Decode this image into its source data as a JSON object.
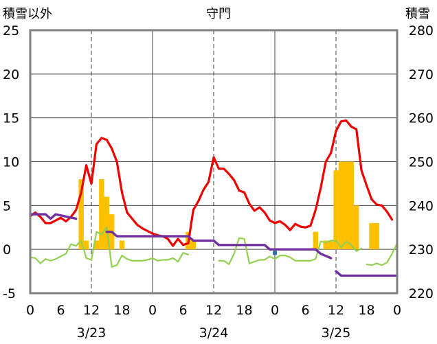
{
  "chart_data": {
    "type": "line",
    "title": "守門",
    "left_axis_label": "積雪以外",
    "right_axis_label": "積雪",
    "y_left": {
      "min": -5,
      "max": 25,
      "ticks": [
        25,
        20,
        15,
        10,
        5,
        0,
        -5
      ]
    },
    "y_right": {
      "min": 220,
      "max": 280,
      "ticks": [
        280,
        270,
        260,
        250,
        240,
        230,
        220
      ]
    },
    "x": {
      "min": 0,
      "max": 72,
      "tick_hours": [
        0,
        6,
        12,
        18,
        24,
        30,
        36,
        42,
        48,
        54,
        60,
        66,
        72
      ],
      "tick_labels": [
        "0",
        "6",
        "12",
        "18",
        "0",
        "6",
        "12",
        "18",
        "0",
        "6",
        "12",
        "18",
        "0"
      ]
    },
    "date_labels": [
      {
        "hour": 12,
        "text": "3/23"
      },
      {
        "hour": 36,
        "text": "3/24"
      },
      {
        "hour": 60,
        "text": "3/25"
      }
    ],
    "grid": {
      "dashed_hours": [
        12,
        36,
        60
      ],
      "solid_hours": [
        24,
        48
      ],
      "horizontal_lines": [
        20,
        15,
        10,
        5,
        0
      ]
    },
    "colors": {
      "temperature": "#ee0000",
      "precipitation": "#ffc000",
      "wind": "#92d050",
      "snow_depth": "#7030a0",
      "snow_marker": "#2e75b6",
      "grid": "#404040",
      "frame": "#808080"
    },
    "series": [
      {
        "key": "precipitation",
        "kind": "bar",
        "axis": "left",
        "points": [
          [
            10,
            8
          ],
          [
            11,
            1
          ],
          [
            13,
            1
          ],
          [
            14,
            8
          ],
          [
            15,
            6
          ],
          [
            16,
            4
          ],
          [
            18,
            1
          ],
          [
            31,
            2
          ],
          [
            32,
            1
          ],
          [
            56,
            2
          ],
          [
            58,
            1
          ],
          [
            59,
            1
          ],
          [
            60,
            9
          ],
          [
            61,
            10
          ],
          [
            62,
            10
          ],
          [
            63,
            10
          ],
          [
            64,
            5
          ],
          [
            67,
            3
          ],
          [
            68,
            3
          ]
        ]
      },
      {
        "key": "wind",
        "kind": "line",
        "axis": "left",
        "segments": [
          [
            [
              0,
              -0.9
            ],
            [
              1,
              -1
            ],
            [
              2,
              -1.6
            ],
            [
              3,
              -1.1
            ],
            [
              4,
              -1.3
            ],
            [
              5,
              -1.1
            ],
            [
              6,
              -0.8
            ],
            [
              7,
              -0.5
            ],
            [
              8,
              0.6
            ],
            [
              9,
              0.4
            ],
            [
              10,
              1
            ],
            [
              11,
              -1
            ],
            [
              12,
              -1.2
            ],
            [
              13,
              2
            ],
            [
              14,
              1.7
            ],
            [
              15,
              2.5
            ],
            [
              16,
              -2
            ],
            [
              17,
              -1.8
            ],
            [
              18,
              -0.7
            ],
            [
              19,
              -1.1
            ],
            [
              20,
              -1.3
            ],
            [
              21,
              -1.3
            ],
            [
              22,
              -1.3
            ],
            [
              23,
              -1.2
            ],
            [
              24,
              -1
            ],
            [
              25,
              -1.3
            ],
            [
              26,
              -1.2
            ],
            [
              27,
              -1.2
            ],
            [
              28,
              -1
            ],
            [
              29,
              -1.4
            ],
            [
              30,
              -0.4
            ],
            [
              31,
              -0.6
            ]
          ],
          [
            [
              37,
              -1.3
            ],
            [
              38,
              -1.3
            ],
            [
              39,
              -1.7
            ],
            [
              40,
              -0.5
            ],
            [
              41,
              1.3
            ],
            [
              42,
              1.2
            ],
            [
              43,
              -1.6
            ],
            [
              44,
              -1.4
            ],
            [
              45,
              -1.2
            ],
            [
              46,
              -1.2
            ],
            [
              47,
              -0.8
            ],
            [
              48,
              -1.1
            ],
            [
              49,
              -0.7
            ],
            [
              50,
              -0.7
            ],
            [
              51,
              -0.9
            ],
            [
              52,
              -1.3
            ],
            [
              53,
              -1.3
            ],
            [
              54,
              -1.3
            ],
            [
              55,
              -1.3
            ],
            [
              56,
              -1.1
            ],
            [
              57,
              0.9
            ],
            [
              58,
              0.8
            ],
            [
              59,
              1
            ],
            [
              60,
              1
            ],
            [
              61,
              0.2
            ],
            [
              62,
              0.9
            ],
            [
              63,
              0.5
            ],
            [
              64,
              -0.2
            ],
            [
              65,
              0.1
            ]
          ],
          [
            [
              66,
              -1.7
            ],
            [
              67,
              -1.8
            ],
            [
              68,
              -1.6
            ],
            [
              69,
              -1.8
            ],
            [
              70,
              -1.5
            ],
            [
              71,
              -0.5
            ],
            [
              72,
              0.7
            ]
          ]
        ]
      },
      {
        "key": "temperature",
        "kind": "line",
        "axis": "left",
        "segments": [
          [
            [
              0,
              3.8
            ],
            [
              1,
              4.2
            ],
            [
              2,
              3.7
            ],
            [
              3,
              3
            ],
            [
              4,
              3
            ],
            [
              5,
              3.3
            ],
            [
              6,
              3.6
            ],
            [
              7,
              3.2
            ],
            [
              8,
              3.7
            ],
            [
              9,
              4.5
            ],
            [
              10,
              6.5
            ],
            [
              11,
              9.6
            ],
            [
              12,
              7.5
            ],
            [
              13,
              12
            ],
            [
              14,
              12.7
            ],
            [
              15,
              12.5
            ],
            [
              16,
              11.5
            ],
            [
              17,
              10
            ],
            [
              18,
              6.5
            ],
            [
              19,
              4.2
            ],
            [
              20,
              3.5
            ],
            [
              21,
              2.8
            ],
            [
              22,
              2.4
            ],
            [
              23,
              2.1
            ],
            [
              24,
              1.8
            ],
            [
              25,
              1.6
            ],
            [
              26,
              1.5
            ],
            [
              27,
              1.2
            ],
            [
              28,
              0.4
            ],
            [
              29,
              1.2
            ],
            [
              30,
              0.5
            ],
            [
              31,
              0.7
            ],
            [
              32,
              4.5
            ],
            [
              33,
              5.5
            ],
            [
              34,
              6.8
            ],
            [
              35,
              7.7
            ],
            [
              36,
              10.5
            ],
            [
              37,
              9.2
            ],
            [
              38,
              9.2
            ],
            [
              39,
              8.6
            ],
            [
              40,
              7.9
            ],
            [
              41,
              6.7
            ],
            [
              42,
              6.5
            ],
            [
              43,
              5.2
            ],
            [
              44,
              4.4
            ],
            [
              45,
              4.8
            ],
            [
              46,
              4.2
            ],
            [
              47,
              3.3
            ],
            [
              48,
              3
            ],
            [
              49,
              3.2
            ],
            [
              50,
              2.8
            ],
            [
              51,
              2.2
            ],
            [
              52,
              2.9
            ],
            [
              53,
              2.6
            ],
            [
              54,
              2.5
            ],
            [
              55,
              2.7
            ],
            [
              56,
              4.5
            ],
            [
              57,
              7
            ],
            [
              58,
              10
            ],
            [
              59,
              11
            ],
            [
              60,
              13.5
            ],
            [
              61,
              14.6
            ],
            [
              62,
              14.7
            ],
            [
              63,
              14
            ],
            [
              64,
              13.7
            ],
            [
              65,
              9
            ],
            [
              66,
              7.3
            ],
            [
              67,
              5.7
            ],
            [
              68,
              5.1
            ],
            [
              69,
              5
            ],
            [
              70,
              4.3
            ],
            [
              71,
              3.4
            ]
          ]
        ]
      },
      {
        "key": "snow_depth",
        "kind": "line",
        "axis": "right",
        "segments": [
          [
            [
              0,
              238
            ],
            [
              3,
              238
            ],
            [
              4,
              237
            ],
            [
              5,
              238
            ],
            [
              9,
              237
            ]
          ],
          [
            [
              15,
              234
            ],
            [
              16,
              234
            ],
            [
              17,
              233
            ],
            [
              31,
              233
            ],
            [
              32,
              232
            ],
            [
              36,
              232
            ],
            [
              37,
              231
            ],
            [
              46,
              231
            ],
            [
              47,
              230
            ],
            [
              56,
              230
            ],
            [
              57,
              229
            ],
            [
              59,
              228
            ]
          ],
          [
            [
              60,
              225
            ],
            [
              61,
              224
            ],
            [
              66,
              224
            ],
            [
              72,
              224
            ]
          ]
        ]
      },
      {
        "key": "snow_marker",
        "kind": "marker",
        "axis": "left",
        "points": [
          [
            48,
            -0.4
          ]
        ]
      }
    ]
  }
}
